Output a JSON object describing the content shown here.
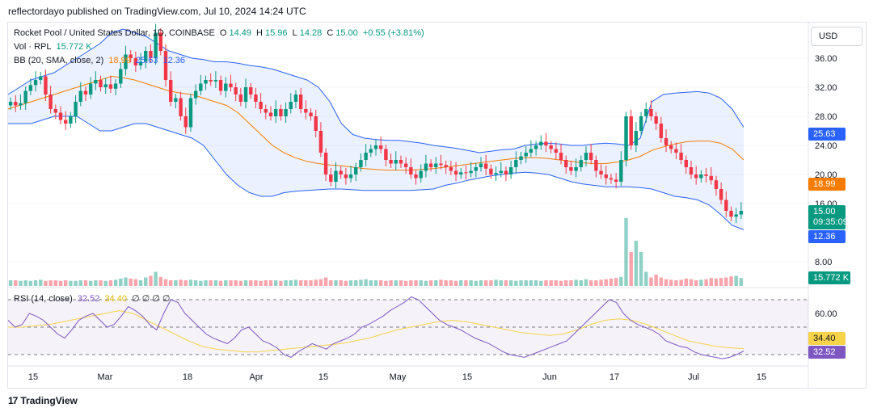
{
  "publisher": "reflectordayo published on TradingView.com, Jul 10, 2024 14:24 UTC",
  "brand": "TradingView",
  "brand_logo_text": "17",
  "currency_button": "USD",
  "legend": {
    "symbol": "Rocket Pool / United States Dollar, 1D, COINBASE",
    "open_label": "O",
    "open": "14.49",
    "high_label": "H",
    "high": "15.96",
    "low_label": "L",
    "low": "14.28",
    "close_label": "C",
    "close": "15.00",
    "change": "+0.55 (+3.81%)",
    "vol_label": "Vol · RPL",
    "vol": "15.772 K",
    "bb_label": "BB (20, SMA, close, 2)",
    "bb_basis": "18.99",
    "bb_upper": "25.63",
    "bb_lower": "12.36",
    "rsi_label": "RSI (14, close)",
    "rsi": "32.52",
    "rsi_ma": "34.40",
    "rsi_extra": "∅ ∅ ∅ ∅"
  },
  "badges": {
    "upper": "25.63",
    "basis": "18.99",
    "price": "15.00",
    "countdown": "09:35:09",
    "lower": "12.36",
    "volume": "15.772 K",
    "rsi_ma": "34.40",
    "rsi": "32.52"
  },
  "colors": {
    "up": "#089981",
    "down": "#f23645",
    "basis": "#f57c00",
    "band": "#2962ff",
    "rsi": "#7e57c2",
    "rsi_ma": "#f7d34a"
  },
  "chart_data": {
    "type": "candlestick",
    "price_axis_ticks": [
      "36.00",
      "32.00",
      "28.00",
      "24.00",
      "20.00",
      "16.00",
      "8.00"
    ],
    "rsi_axis_ticks": [
      "60.00"
    ],
    "x_ticks": [
      "15",
      "Mar",
      "18",
      "Apr",
      "15",
      "May",
      "15",
      "Jun",
      "17",
      "Jul",
      "15"
    ],
    "rsi_levels": [
      70,
      50,
      30
    ],
    "closes": [
      30,
      29.5,
      29.8,
      31.5,
      32.3,
      33,
      33.5,
      31,
      29,
      28.5,
      27.5,
      27,
      28,
      30,
      31.5,
      31,
      32.5,
      33,
      32,
      32.4,
      31.8,
      32.5,
      34.5,
      36.5,
      36,
      35,
      35.5,
      37,
      36,
      39.5,
      37,
      33,
      30,
      30.5,
      28,
      26.5,
      30.5,
      31.5,
      32.5,
      33,
      32.8,
      33,
      31.5,
      32.5,
      32,
      31,
      30,
      32,
      31,
      30,
      29,
      28.5,
      28,
      29,
      28,
      29,
      30,
      31,
      29,
      28.5,
      28,
      26,
      23,
      20,
      19,
      20.5,
      20,
      19.5,
      20,
      21,
      22,
      23,
      23.5,
      24,
      23.5,
      22,
      21.5,
      22,
      21.5,
      21,
      20,
      19.5,
      20.5,
      21.5,
      21,
      21.5,
      21.3,
      21,
      20.5,
      20,
      20.3,
      20.2,
      20.5,
      21,
      21.5,
      20.8,
      20,
      20.2,
      20.5,
      20,
      21,
      22,
      22.5,
      23,
      23.5,
      24,
      24.5,
      24,
      23.5,
      23,
      22,
      21,
      20.5,
      21,
      22,
      23,
      22,
      20.5,
      20,
      19.5,
      19.3,
      19,
      22,
      28,
      24,
      26,
      28,
      29,
      28,
      27,
      25,
      24,
      23.5,
      23,
      22,
      21,
      20,
      19.5,
      20,
      19.8,
      19.2,
      18,
      16.5,
      15,
      14.2,
      14.5,
      15
    ],
    "volumes": [
      10,
      10,
      9,
      10,
      9,
      10,
      11,
      9,
      10,
      10,
      9,
      10,
      9,
      9,
      10,
      10,
      9,
      10,
      10,
      9,
      10,
      11,
      13,
      15,
      13,
      12,
      10,
      15,
      18,
      25,
      16,
      12,
      10,
      10,
      11,
      10,
      11,
      10,
      9,
      10,
      10,
      10,
      9,
      10,
      10,
      10,
      9,
      10,
      10,
      10,
      9,
      10,
      10,
      10,
      9,
      10,
      10,
      11,
      10,
      10,
      10,
      11,
      12,
      15,
      10,
      10,
      10,
      9,
      10,
      10,
      11,
      12,
      10,
      10,
      10,
      9,
      10,
      10,
      10,
      9,
      10,
      10,
      10,
      9,
      10,
      10,
      11,
      10,
      10,
      9,
      10,
      10,
      10,
      9,
      10,
      10,
      10,
      11,
      10,
      10,
      10,
      9,
      10,
      10,
      10,
      10,
      9,
      10,
      10,
      10,
      9,
      10,
      10,
      11,
      10,
      12,
      10,
      10,
      11,
      12,
      13,
      14,
      16,
      120,
      60,
      80,
      60,
      25,
      15,
      20,
      15,
      12,
      11,
      10,
      11,
      13,
      12,
      10,
      11,
      12,
      14,
      13,
      14,
      15,
      17,
      18,
      14
    ],
    "bb_upper": [
      31,
      32,
      33,
      33.5,
      34,
      35,
      36,
      37,
      38,
      39.5,
      40,
      39.5,
      39,
      38,
      37,
      36.5,
      36,
      35.8,
      35.5,
      35.5,
      35.3,
      35,
      34.8,
      34.5,
      34,
      33.5,
      33,
      32,
      30,
      27,
      25.5,
      25,
      24.8,
      24.7,
      24.7,
      24.5,
      24.3,
      24,
      23.8,
      23.6,
      23.3,
      23,
      23.2,
      23.4,
      23.5,
      24,
      24.2,
      24.3,
      24.2,
      24,
      24,
      24.2,
      24.3,
      24.2,
      24,
      25,
      30,
      31,
      31.2,
      31.3,
      31.4,
      31.2,
      30.5,
      29,
      26.5
    ],
    "bb_basis": [
      29,
      29.5,
      30,
      30.5,
      31,
      31.5,
      32,
      32.5,
      33,
      33.5,
      33.3,
      33,
      32.5,
      32,
      31.5,
      31.2,
      31,
      30.5,
      30,
      29.5,
      28.5,
      27,
      25.5,
      24,
      23,
      22.3,
      21.8,
      21.5,
      21.3,
      21.2,
      21,
      20.8,
      20.7,
      20.6,
      20.6,
      20.6,
      20.7,
      20.8,
      21,
      21.2,
      21.4,
      21.6,
      21.8,
      22,
      22.2,
      22.3,
      22.3,
      22.2,
      22,
      21.8,
      21.6,
      21.5,
      21.5,
      21.7,
      22,
      22.5,
      23.3,
      23.8,
      24.2,
      24.5,
      24.6,
      24.6,
      24.3,
      23.5,
      22
    ],
    "bb_lower": [
      27,
      27,
      27,
      27.5,
      28,
      28,
      28,
      27,
      26,
      26,
      26.5,
      27,
      27,
      26.5,
      26,
      25.5,
      25,
      24,
      22,
      20,
      18.5,
      17.5,
      17,
      17,
      17.5,
      17.7,
      17.8,
      17.9,
      18,
      18,
      17.9,
      17.8,
      17.8,
      17.8,
      17.8,
      17.8,
      17.9,
      18,
      18.5,
      18.8,
      19.2,
      19.5,
      19.8,
      20,
      20.2,
      20.3,
      20.2,
      20,
      19.5,
      19,
      18.7,
      18.5,
      18.3,
      18.3,
      18.3,
      18.2,
      18,
      17.5,
      17,
      16.8,
      16.5,
      15.8,
      14.5,
      13,
      12.4
    ],
    "rsi": [
      55,
      50,
      52,
      60,
      58,
      55,
      50,
      45,
      42,
      48,
      55,
      58,
      60,
      55,
      50,
      52,
      58,
      65,
      62,
      58,
      52,
      48,
      60,
      70,
      68,
      60,
      55,
      50,
      45,
      42,
      40,
      38,
      42,
      48,
      50,
      45,
      40,
      38,
      35,
      30,
      28,
      32,
      35,
      38,
      36,
      34,
      38,
      40,
      42,
      45,
      50,
      52,
      55,
      58,
      62,
      65,
      68,
      72,
      70,
      65,
      60,
      55,
      52,
      50,
      48,
      45,
      42,
      40,
      38,
      35,
      32,
      30,
      29,
      28,
      30,
      32,
      34,
      36,
      38,
      40,
      45,
      50,
      55,
      60,
      65,
      70,
      68,
      60,
      55,
      52,
      50,
      48,
      45,
      40,
      38,
      36,
      35,
      32,
      30,
      29,
      28,
      27,
      28,
      30,
      32.5
    ],
    "rsi_ma": [
      50,
      50,
      51,
      52,
      54,
      56,
      58,
      60,
      62,
      60,
      55,
      50,
      45,
      40,
      36,
      34,
      33,
      32,
      32,
      33,
      34,
      35,
      36,
      37,
      38,
      40,
      42,
      45,
      48,
      50,
      52,
      54,
      55,
      54,
      52,
      50,
      48,
      46,
      45,
      44,
      45,
      48,
      52,
      55,
      56,
      55,
      52,
      48,
      44,
      40,
      38,
      36,
      35,
      34.4
    ]
  }
}
